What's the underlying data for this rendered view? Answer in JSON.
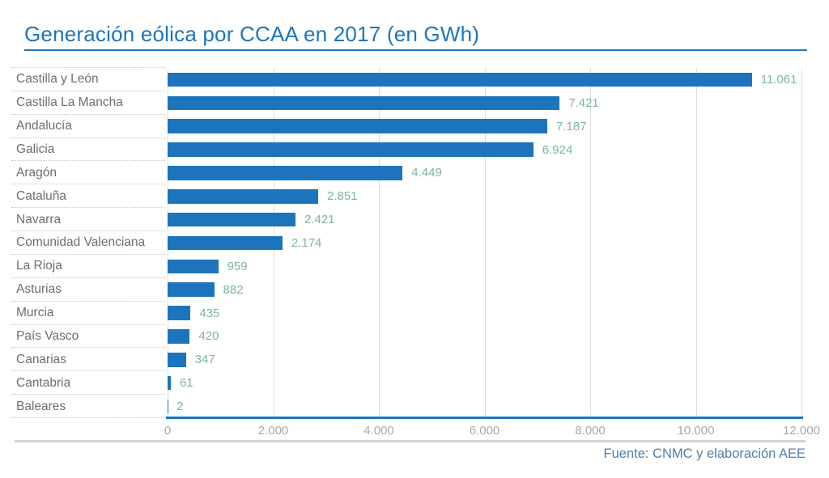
{
  "title": "Generación eólica por CCAA en 2017 (en GWh)",
  "source": "Fuente: CNMC y elaboración AEE",
  "colors": {
    "bar": "#1c75bc",
    "title": "#1c75bc",
    "value_label": "#7fb2a8",
    "category_label": "#6d6e71",
    "axis_tick": "#a6a8ab",
    "gridline": "#dcdddd",
    "dotted_separator": "#b5cdc5",
    "footer_line": "#d2d3d5",
    "source_text": "#4d7fab"
  },
  "chart_data": {
    "type": "bar",
    "orientation": "horizontal",
    "title": "Generación eólica por CCAA en 2017 (en GWh)",
    "xlabel": "",
    "ylabel": "",
    "categories": [
      "Castilla y León",
      "Castilla La Mancha",
      "Andalucía",
      "Galicia",
      "Aragón",
      "Cataluña",
      "Navarra",
      "Comunidad Valenciana",
      "La Rioja",
      "Asturias",
      "Murcia",
      "País Vasco",
      "Canarias",
      "Cantabria",
      "Baleares"
    ],
    "values": [
      11061,
      7421,
      7187,
      6924,
      4449,
      2851,
      2421,
      2174,
      959,
      882,
      435,
      420,
      347,
      61,
      2
    ],
    "value_labels": [
      "11.061",
      "7.421",
      "7.187",
      "6.924",
      "4.449",
      "2.851",
      "2.421",
      "2.174",
      "959",
      "882",
      "435",
      "420",
      "347",
      "61",
      "2"
    ],
    "xlim": [
      0,
      12000
    ],
    "x_ticks": [
      0,
      2000,
      4000,
      6000,
      8000,
      10000,
      12000
    ],
    "x_tick_labels": [
      "0",
      "2.000",
      "4.000",
      "6.000",
      "8.000",
      "10.000",
      "12.000"
    ],
    "grid": true,
    "legend": false,
    "source": "Fuente: CNMC y elaboración AEE"
  }
}
